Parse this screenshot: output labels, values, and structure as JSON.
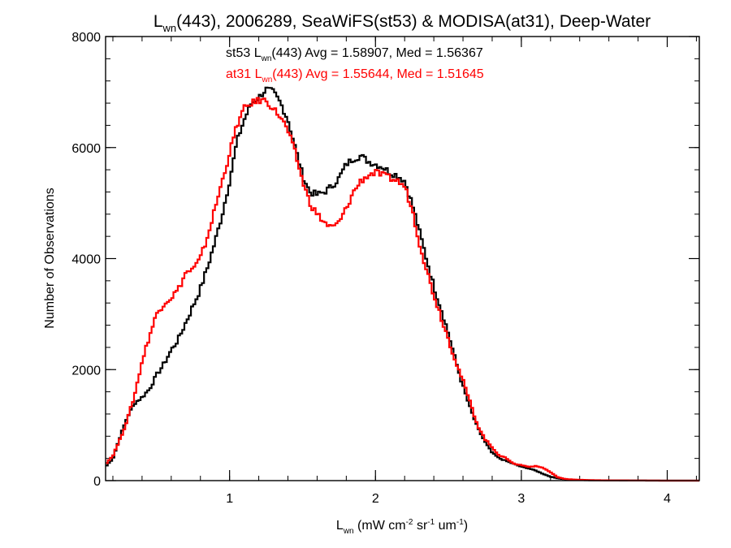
{
  "chart_data": {
    "type": "line",
    "title": {
      "prefix": "L",
      "sub": "wn",
      "rest": "(443), 2006289, SeaWiFS(st53) & MODISA(at31), Deep-Water"
    },
    "xlabel": {
      "prefix": "L",
      "sub": "wn",
      "mid1": " (mW cm",
      "sup1": "-2",
      "mid2": " sr",
      "sup2": "-1",
      "mid3": " um",
      "sup3": "-1",
      "end": ")"
    },
    "ylabel": "Number of Observations",
    "xlim": [
      0.15,
      4.22
    ],
    "ylim": [
      0,
      8000
    ],
    "xticks": [
      1,
      2,
      3,
      4
    ],
    "yticks": [
      0,
      2000,
      4000,
      6000,
      8000
    ],
    "x_minor_step": 0.2,
    "y_minor_step": 400,
    "annotations": [
      {
        "color": "#000000",
        "label": {
          "pre": "st53 L",
          "sub": "wn",
          "post": "(443) Avg = 1.58907, Med = 1.56367"
        }
      },
      {
        "color": "#ff0000",
        "label": {
          "pre": "at31 L",
          "sub": "wn",
          "post": "(443) Avg = 1.55644, Med = 1.51645"
        }
      }
    ],
    "series": [
      {
        "color": "#000000",
        "x": [
          0.15,
          0.2,
          0.25,
          0.3,
          0.35,
          0.4,
          0.45,
          0.5,
          0.55,
          0.6,
          0.65,
          0.7,
          0.75,
          0.8,
          0.85,
          0.9,
          0.95,
          1.0,
          1.05,
          1.1,
          1.15,
          1.2,
          1.25,
          1.3,
          1.35,
          1.4,
          1.45,
          1.5,
          1.55,
          1.6,
          1.65,
          1.7,
          1.75,
          1.8,
          1.85,
          1.9,
          1.95,
          2.0,
          2.05,
          2.1,
          2.15,
          2.2,
          2.25,
          2.3,
          2.35,
          2.4,
          2.45,
          2.5,
          2.55,
          2.6,
          2.65,
          2.7,
          2.75,
          2.8,
          2.85,
          2.9,
          2.95,
          3.0,
          3.05,
          3.1,
          3.15,
          3.2,
          3.25,
          3.3,
          3.35,
          3.4,
          3.5,
          3.6,
          3.8,
          4.0,
          4.22
        ],
        "y": [
          250,
          400,
          800,
          1150,
          1400,
          1500,
          1650,
          1900,
          2100,
          2350,
          2550,
          2850,
          3150,
          3450,
          3850,
          4300,
          4800,
          5400,
          6100,
          6500,
          6800,
          6900,
          7050,
          7000,
          6800,
          6500,
          6000,
          5500,
          5200,
          5150,
          5200,
          5300,
          5450,
          5700,
          5800,
          5850,
          5750,
          5700,
          5650,
          5550,
          5500,
          5400,
          5000,
          4500,
          4000,
          3500,
          3100,
          2650,
          2150,
          1700,
          1300,
          950,
          700,
          500,
          400,
          350,
          300,
          250,
          220,
          180,
          120,
          70,
          40,
          25,
          15,
          10,
          5,
          3,
          1,
          0,
          0
        ]
      },
      {
        "color": "#ff0000",
        "x": [
          0.15,
          0.2,
          0.25,
          0.3,
          0.35,
          0.4,
          0.45,
          0.5,
          0.55,
          0.6,
          0.65,
          0.7,
          0.75,
          0.8,
          0.85,
          0.9,
          0.95,
          1.0,
          1.05,
          1.1,
          1.15,
          1.2,
          1.25,
          1.3,
          1.35,
          1.4,
          1.45,
          1.5,
          1.55,
          1.6,
          1.65,
          1.7,
          1.75,
          1.8,
          1.85,
          1.9,
          1.95,
          2.0,
          2.05,
          2.1,
          2.15,
          2.2,
          2.25,
          2.3,
          2.35,
          2.4,
          2.45,
          2.5,
          2.55,
          2.6,
          2.65,
          2.7,
          2.75,
          2.8,
          2.85,
          2.9,
          2.95,
          3.0,
          3.05,
          3.1,
          3.15,
          3.2,
          3.25,
          3.3,
          3.35,
          3.4,
          3.5,
          3.6,
          3.8,
          4.0,
          4.22
        ],
        "y": [
          300,
          450,
          750,
          1100,
          1550,
          2150,
          2600,
          3000,
          3200,
          3300,
          3450,
          3750,
          3800,
          4000,
          4400,
          4900,
          5400,
          5900,
          6400,
          6700,
          6800,
          6850,
          6850,
          6700,
          6550,
          6300,
          5900,
          5400,
          5000,
          4800,
          4650,
          4550,
          4650,
          4900,
          5200,
          5400,
          5500,
          5550,
          5500,
          5450,
          5400,
          5300,
          4900,
          4300,
          3800,
          3350,
          2950,
          2550,
          2150,
          1800,
          1400,
          1000,
          750,
          600,
          450,
          400,
          300,
          280,
          250,
          260,
          230,
          150,
          60,
          30,
          20,
          15,
          8,
          5,
          3,
          0,
          0
        ]
      }
    ]
  }
}
